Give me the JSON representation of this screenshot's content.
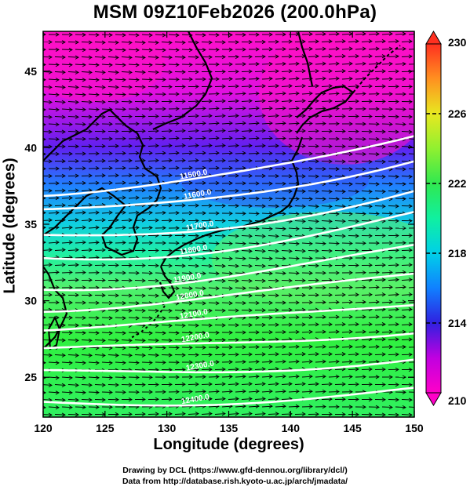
{
  "title": "MSM 09Z10Feb2026 (200.0hPa)",
  "axes": {
    "xlabel": "Longitude (degrees)",
    "ylabel": "Latitude  (degrees)",
    "xlim": [
      120,
      150
    ],
    "ylim": [
      22.4,
      47.6
    ],
    "xticks": [
      "120",
      "125",
      "130",
      "135",
      "140",
      "145",
      "150"
    ],
    "yticks": [
      "25",
      "30",
      "35",
      "40",
      "45"
    ]
  },
  "colorbar": {
    "min": 210,
    "max": 230,
    "labels": [
      "230",
      "226",
      "222",
      "218",
      "214",
      "210"
    ]
  },
  "contours": {
    "labels": [
      "11500.0",
      "11600.0",
      "11700.0",
      "11800.0",
      "11900.0",
      "12000.0",
      "12100.0",
      "12200.0",
      "12300.0",
      "12400.0"
    ]
  },
  "credits": {
    "line1": "Drawing by DCL (https://www.gfd-dennou.org/library/dcl/)",
    "line2": "Data from http://database.rish.kyoto-u.ac.jp/arch/jmadata/"
  },
  "colors": {
    "cold": "#ff00cc",
    "mid": "#00e8c0",
    "warm": "#40ff30",
    "contour": "#ffffff",
    "vector": "#000000"
  }
}
